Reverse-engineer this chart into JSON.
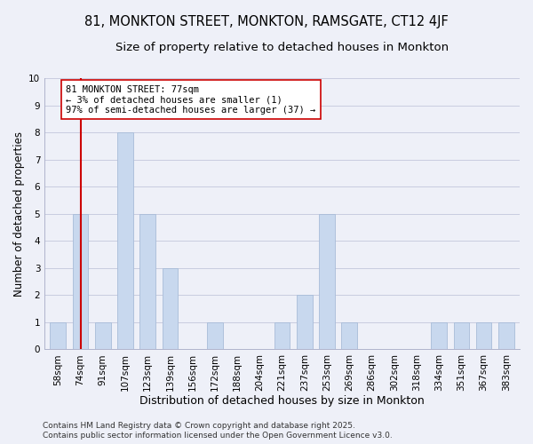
{
  "title": "81, MONKTON STREET, MONKTON, RAMSGATE, CT12 4JF",
  "subtitle": "Size of property relative to detached houses in Monkton",
  "xlabel": "Distribution of detached houses by size in Monkton",
  "ylabel": "Number of detached properties",
  "bar_color": "#c8d8ee",
  "bar_edge_color": "#a8bcd8",
  "background_color": "#eef0f8",
  "plot_bg_color": "#eef0f8",
  "grid_color": "#c8cce0",
  "categories": [
    "58sqm",
    "74sqm",
    "91sqm",
    "107sqm",
    "123sqm",
    "139sqm",
    "156sqm",
    "172sqm",
    "188sqm",
    "204sqm",
    "221sqm",
    "237sqm",
    "253sqm",
    "269sqm",
    "286sqm",
    "302sqm",
    "318sqm",
    "334sqm",
    "351sqm",
    "367sqm",
    "383sqm"
  ],
  "values": [
    1,
    5,
    1,
    8,
    5,
    3,
    0,
    1,
    0,
    0,
    1,
    2,
    5,
    1,
    0,
    0,
    0,
    1,
    1,
    1,
    1
  ],
  "ylim": [
    0,
    10
  ],
  "yticks": [
    0,
    1,
    2,
    3,
    4,
    5,
    6,
    7,
    8,
    9,
    10
  ],
  "ref_line_x": 1.0,
  "annotation_line1": "81 MONKTON STREET: 77sqm",
  "annotation_line2": "← 3% of detached houses are smaller (1)",
  "annotation_line3": "97% of semi-detached houses are larger (37) →",
  "ref_line_color": "#cc0000",
  "annotation_box_edge": "#cc0000",
  "footer1": "Contains HM Land Registry data © Crown copyright and database right 2025.",
  "footer2": "Contains public sector information licensed under the Open Government Licence v3.0.",
  "title_fontsize": 10.5,
  "subtitle_fontsize": 9.5,
  "xlabel_fontsize": 9,
  "ylabel_fontsize": 8.5,
  "tick_fontsize": 7.5,
  "annotation_fontsize": 7.5,
  "footer_fontsize": 6.5
}
